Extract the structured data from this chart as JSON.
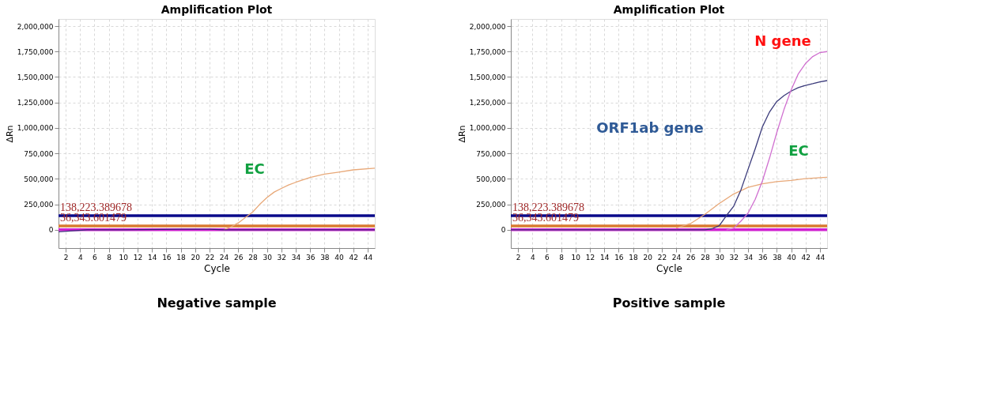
{
  "chart_data": [
    {
      "type": "line",
      "title": "Amplification Plot",
      "xlabel": "Cycle",
      "ylabel": "ΔRn",
      "xlim": [
        1,
        45
      ],
      "xticks": [
        2,
        4,
        6,
        8,
        10,
        12,
        14,
        16,
        18,
        20,
        22,
        24,
        26,
        28,
        30,
        32,
        34,
        36,
        38,
        40,
        42,
        44
      ],
      "ylim": [
        -180000,
        2070000
      ],
      "yticks": [
        0,
        {
          "value": 250000,
          "label": "250,000"
        },
        {
          "value": 500000,
          "label": "500,000"
        },
        {
          "value": 750000,
          "label": "750,000"
        },
        {
          "value": 1000000,
          "label": "1,000,000"
        },
        {
          "value": 1250000,
          "label": "1,250,000"
        },
        {
          "value": 1500000,
          "label": "1,500,000"
        },
        {
          "value": 1750000,
          "label": "1,750,000"
        },
        {
          "value": 2000000,
          "label": "2,000,000"
        }
      ],
      "grid": true,
      "series": [
        {
          "color": "#e8a878",
          "x": [
            24,
            25,
            26,
            27,
            28,
            29,
            30,
            31,
            32,
            33,
            34,
            36,
            38,
            40,
            42,
            45
          ],
          "values": [
            0,
            29000,
            67000,
            120000,
            173000,
            250000,
            317000,
            370000,
            406000,
            440000,
            466000,
            513000,
            546000,
            566000,
            588000,
            604000
          ]
        },
        {
          "color": "#3a2a7a",
          "x": [
            1,
            3,
            5,
            10,
            18,
            22,
            24,
            30,
            40,
            45
          ],
          "values": [
            -20000,
            -10000,
            0,
            0,
            5000,
            5000,
            0,
            0,
            0,
            0
          ]
        }
      ],
      "ref_lines": [
        {
          "axis": "y",
          "value": 138223.389678,
          "label": "138,223.389678",
          "color": "#0a0a8a"
        },
        {
          "axis": "y",
          "value": 36343.601479,
          "label": "36,343.601479",
          "color": "#d97a30"
        },
        {
          "axis": "y",
          "value": 0,
          "label": null,
          "color": "#d020d0"
        }
      ],
      "annotations": [
        "EC",
        "Negative sample"
      ]
    },
    {
      "type": "line",
      "title": "Amplification Plot",
      "xlabel": "Cycle",
      "ylabel": "ΔRn",
      "xlim": [
        1,
        45
      ],
      "xticks": [
        2,
        4,
        6,
        8,
        10,
        12,
        14,
        16,
        18,
        20,
        22,
        24,
        26,
        28,
        30,
        32,
        34,
        36,
        38,
        40,
        42,
        44
      ],
      "ylim": [
        -180000,
        2070000
      ],
      "yticks": [
        0,
        {
          "value": 250000,
          "label": "250,000"
        },
        {
          "value": 500000,
          "label": "500,000"
        },
        {
          "value": 750000,
          "label": "750,000"
        },
        {
          "value": 1000000,
          "label": "1,000,000"
        },
        {
          "value": 1250000,
          "label": "1,250,000"
        },
        {
          "value": 1500000,
          "label": "1,500,000"
        },
        {
          "value": 1750000,
          "label": "1,750,000"
        },
        {
          "value": 2000000,
          "label": "2,000,000"
        }
      ],
      "grid": true,
      "series": [
        {
          "color": "#e8a878",
          "x": [
            24,
            26,
            28,
            30,
            32,
            34,
            36,
            38,
            40,
            42,
            44,
            45
          ],
          "values": [
            16000,
            61000,
            152000,
            258000,
            351000,
            416000,
            452000,
            473000,
            484000,
            502000,
            511000,
            515000
          ]
        },
        {
          "color": "#3a3a7a",
          "x": [
            1,
            10,
            20,
            28,
            29,
            30,
            31,
            32,
            33,
            34,
            35,
            36,
            37,
            38,
            39,
            40,
            41,
            42,
            43,
            44,
            45
          ],
          "values": [
            0,
            0,
            0,
            0,
            10000,
            40000,
            140000,
            231000,
            389000,
            593000,
            796000,
            1011000,
            1158000,
            1260000,
            1317000,
            1362000,
            1396000,
            1418000,
            1434000,
            1452000,
            1465000
          ]
        },
        {
          "color": "#d070d0",
          "x": [
            31,
            32,
            33,
            34,
            35,
            36,
            37,
            38,
            39,
            40,
            41,
            42,
            43,
            44,
            45
          ],
          "values": [
            0,
            15000,
            84000,
            163000,
            299000,
            480000,
            706000,
            955000,
            1181000,
            1373000,
            1532000,
            1633000,
            1701000,
            1740000,
            1750000
          ]
        }
      ],
      "ref_lines": [
        {
          "axis": "y",
          "value": 138223.389678,
          "label": "138,223.389678",
          "color": "#0a0a8a"
        },
        {
          "axis": "y",
          "value": 36343.601479,
          "label": "36,343.601479",
          "color": "#d97a30"
        },
        {
          "axis": "y",
          "value": 0,
          "label": null,
          "color": "#d020d0"
        }
      ],
      "annotations": [
        "N gene",
        "ORF1ab gene",
        "EC",
        "Positive sample"
      ]
    }
  ]
}
